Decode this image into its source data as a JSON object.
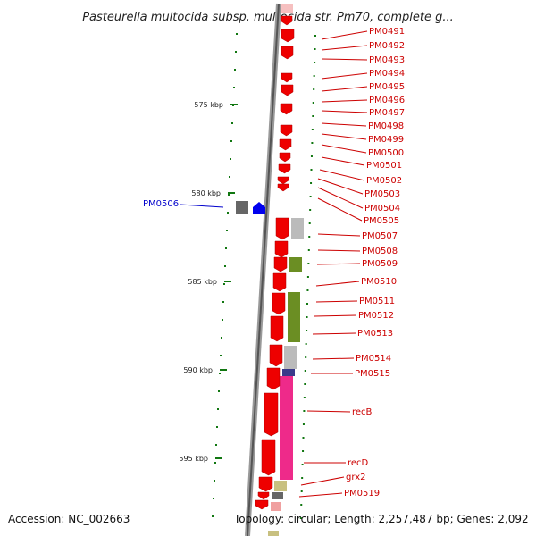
{
  "title": "Pasteurella multocida subsp. multocida str. Pm70, complete g...",
  "accession": "Accession: NC_002663",
  "topology": "Topology: circular; Length: 2,257,487 bp; Genes: 2,092",
  "axis_ticks": [
    {
      "label": "575 kbp",
      "kbp": 575
    },
    {
      "label": "580 kbp",
      "kbp": 580
    },
    {
      "label": "585 kbp",
      "kbp": 585
    },
    {
      "label": "590 kbp",
      "kbp": 590
    },
    {
      "label": "595 kbp",
      "kbp": 595
    }
  ],
  "gene_labels": [
    {
      "name": "PM0491",
      "color": "#cc0000"
    },
    {
      "name": "PM0492",
      "color": "#cc0000"
    },
    {
      "name": "PM0493",
      "color": "#cc0000"
    },
    {
      "name": "PM0494",
      "color": "#cc0000"
    },
    {
      "name": "PM0495",
      "color": "#cc0000"
    },
    {
      "name": "PM0496",
      "color": "#cc0000"
    },
    {
      "name": "PM0497",
      "color": "#cc0000"
    },
    {
      "name": "PM0498",
      "color": "#cc0000"
    },
    {
      "name": "PM0499",
      "color": "#cc0000"
    },
    {
      "name": "PM0500",
      "color": "#cc0000"
    },
    {
      "name": "PM0501",
      "color": "#cc0000"
    },
    {
      "name": "PM0502",
      "color": "#cc0000"
    },
    {
      "name": "PM0503",
      "color": "#cc0000"
    },
    {
      "name": "PM0504",
      "color": "#cc0000"
    },
    {
      "name": "PM0505",
      "color": "#cc0000"
    },
    {
      "name": "PM0507",
      "color": "#cc0000"
    },
    {
      "name": "PM0508",
      "color": "#cc0000"
    },
    {
      "name": "PM0509",
      "color": "#cc0000"
    },
    {
      "name": "PM0510",
      "color": "#cc0000"
    },
    {
      "name": "PM0511",
      "color": "#cc0000"
    },
    {
      "name": "PM0512",
      "color": "#cc0000"
    },
    {
      "name": "PM0513",
      "color": "#cc0000"
    },
    {
      "name": "PM0514",
      "color": "#cc0000"
    },
    {
      "name": "PM0515",
      "color": "#cc0000"
    },
    {
      "name": "recB",
      "color": "#cc0000"
    },
    {
      "name": "recD",
      "color": "#cc0000"
    },
    {
      "name": "grx2",
      "color": "#cc0000"
    },
    {
      "name": "PM0519",
      "color": "#cc0000"
    },
    {
      "name": "PM0506",
      "color": "#0000cc"
    }
  ],
  "colors": {
    "forward_gene": "#ee0000",
    "reverse_gene": "#0000ee",
    "backbone": "#888888",
    "tick": "#117711",
    "cog_gray": "#bbbbbb",
    "cog_olive": "#6b8e23",
    "cog_magenta": "#ee2a8a",
    "cog_khaki": "#c8c080",
    "cog_navy": "#3a3a8a"
  }
}
